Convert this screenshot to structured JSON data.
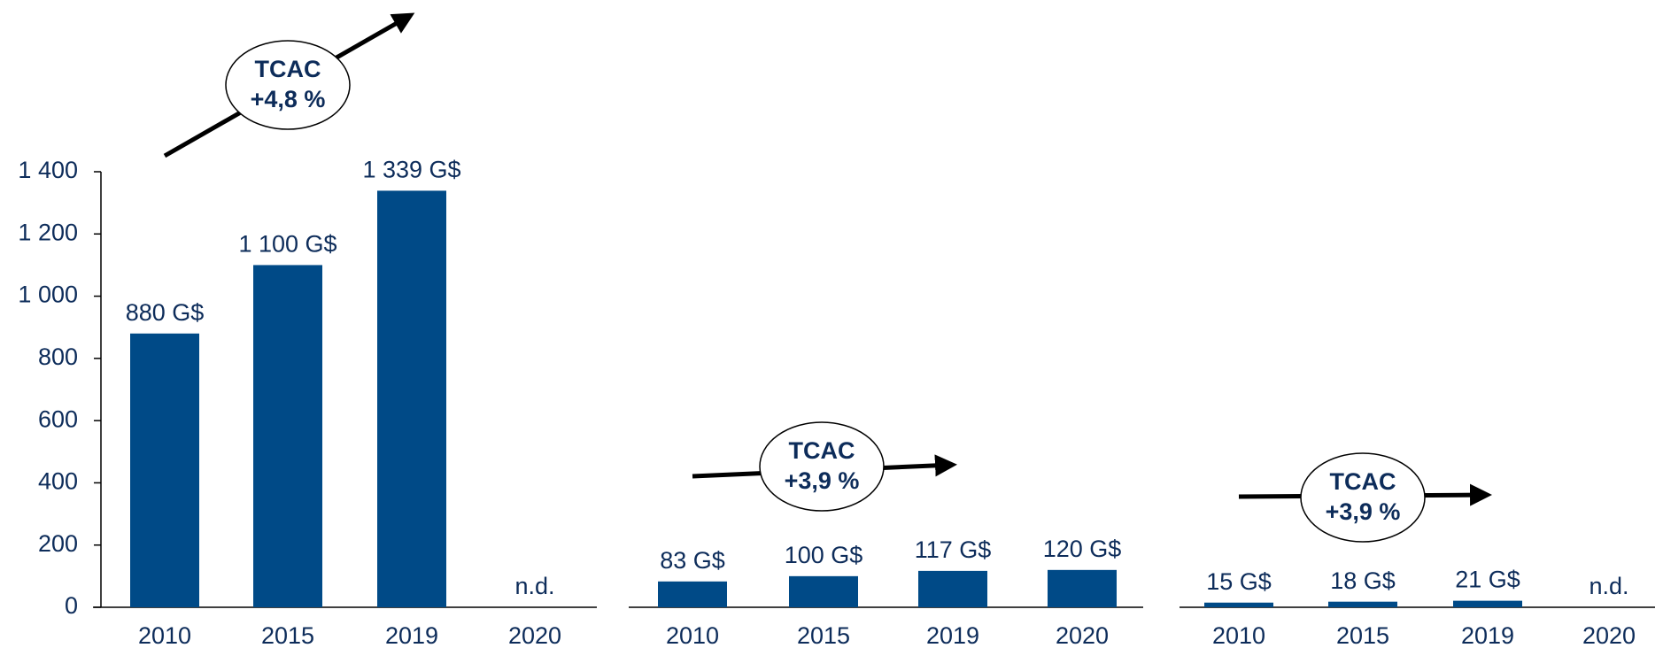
{
  "chart_data": [
    {
      "type": "bar",
      "categories": [
        "2010",
        "2015",
        "2019",
        "2020"
      ],
      "values": [
        880,
        1100,
        1339,
        null
      ],
      "value_labels": [
        "880 G$",
        "1 100 G$",
        "1 339 G$",
        "n.d."
      ],
      "color": "#004a87",
      "ylim": [
        0,
        1400
      ],
      "yticks": [
        0,
        200,
        400,
        600,
        800,
        {
          "value": 1000,
          "label": "1 000"
        },
        {
          "value": 1200,
          "label": "1 200"
        },
        {
          "value": 1400,
          "label": "1 400"
        }
      ],
      "annotation": [
        "TCAC",
        "+4,8 %"
      ]
    },
    {
      "type": "bar",
      "categories": [
        "2010",
        "2015",
        "2019",
        "2020"
      ],
      "values": [
        83,
        100,
        117,
        120
      ],
      "value_labels": [
        "83 G$",
        "100 G$",
        "117 G$",
        "120 G$"
      ],
      "color": "#004a87",
      "ylim": [
        0,
        1400
      ],
      "annotation": [
        "TCAC",
        "+3,9 %"
      ]
    },
    {
      "type": "bar",
      "categories": [
        "2010",
        "2015",
        "2019",
        "2020"
      ],
      "values": [
        15,
        18,
        21,
        null
      ],
      "value_labels": [
        "15 G$",
        "18 G$",
        "21 G$",
        "n.d."
      ],
      "color": "#004a87",
      "ylim": [
        0,
        1400
      ],
      "annotation": [
        "TCAC",
        "+3,9 %"
      ]
    }
  ]
}
